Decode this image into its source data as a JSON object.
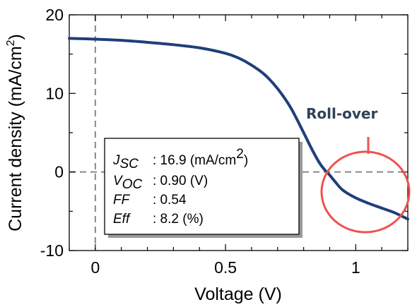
{
  "chart_data": {
    "type": "line",
    "xlabel": "Voltage (V)",
    "ylabel": "Current density (mA/cm",
    "ylabel_sup": "2",
    "ylabel_close": ")",
    "xlim": [
      -0.1,
      1.2
    ],
    "ylim": [
      -10,
      20
    ],
    "x_ticks": [
      0,
      0.5,
      1
    ],
    "x_tick_labels": [
      "0",
      "0.5",
      "1"
    ],
    "y_ticks": [
      20,
      10,
      0,
      -10
    ],
    "y_tick_labels": [
      "20",
      "10",
      "0",
      "-10"
    ],
    "reference_lines": {
      "x": 0,
      "y": 0,
      "style": "dashed"
    },
    "series": [
      {
        "color": "#1f3f7a",
        "x": [
          -0.1,
          0.0,
          0.1,
          0.2,
          0.3,
          0.4,
          0.5,
          0.55,
          0.6,
          0.65,
          0.7,
          0.75,
          0.8,
          0.83,
          0.86,
          0.88,
          0.9,
          0.92,
          0.95,
          1.0,
          1.05,
          1.1,
          1.15,
          1.2
        ],
        "y": [
          17.0,
          16.9,
          16.75,
          16.5,
          16.2,
          15.8,
          15.1,
          14.5,
          13.6,
          12.4,
          10.6,
          8.2,
          5.0,
          3.0,
          1.2,
          0.3,
          -0.4,
          -1.2,
          -2.3,
          -3.3,
          -4.0,
          -4.6,
          -5.2,
          -6.0
        ]
      }
    ],
    "parameters": {
      "jsc_symbol": "J",
      "jsc_sub": "SC",
      "jsc_value": ": 16.9 (mA/cm",
      "jsc_value_sup": "2",
      "jsc_value_close": ")",
      "voc_symbol": "V",
      "voc_sub": "OC",
      "voc_value": ": 0.90 (V)",
      "ff_symbol": "FF",
      "ff_value": ": 0.54",
      "eff_symbol": "Eff",
      "eff_value": ": 8.2 (%)"
    },
    "annotation": {
      "label": "Roll-over",
      "label_color": "#2f4255",
      "circle_color": "#f0504f"
    }
  }
}
